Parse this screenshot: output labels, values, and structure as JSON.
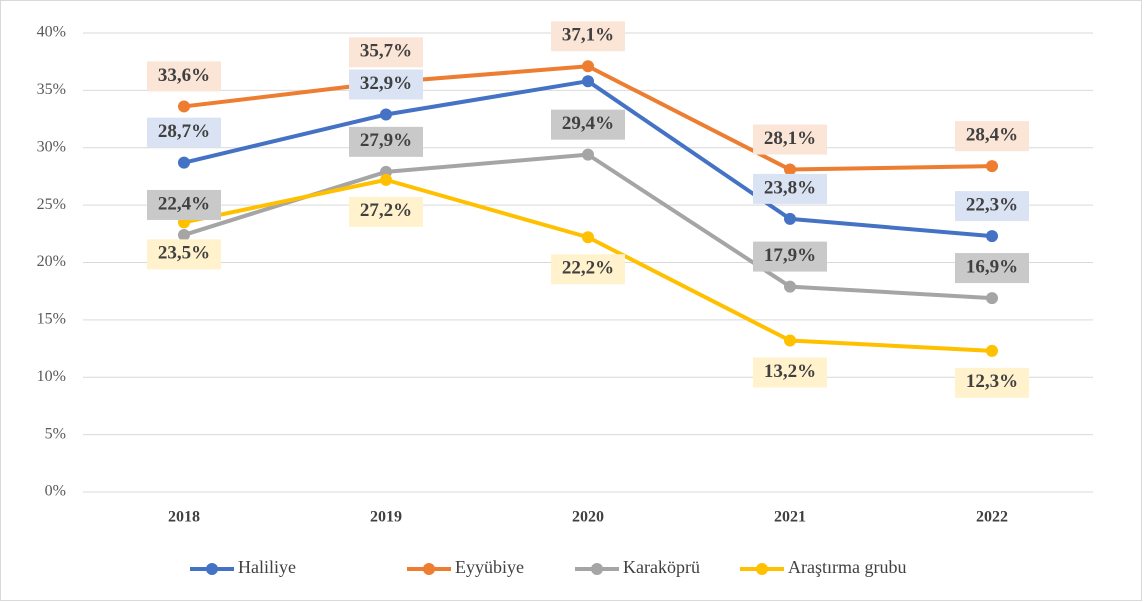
{
  "chart_data": {
    "type": "line",
    "categories": [
      "2018",
      "2019",
      "2020",
      "2021",
      "2022"
    ],
    "series": [
      {
        "name": "Haliliye",
        "color": "#4472c4",
        "values": [
          28.7,
          32.9,
          35.8,
          23.8,
          22.3
        ],
        "value_labels": [
          "28,7%",
          "32,9%",
          null,
          "23,8%",
          "22,3%"
        ]
      },
      {
        "name": "Eyyübiye",
        "color": "#ed7d31",
        "values": [
          33.6,
          35.7,
          37.1,
          28.1,
          28.4
        ],
        "value_labels": [
          "33,6%",
          "35,7%",
          "37,1%",
          "28,1%",
          "28,4%"
        ]
      },
      {
        "name": "Karaköprü",
        "color": "#a5a5a5",
        "values": [
          22.4,
          27.9,
          29.4,
          17.9,
          16.9
        ],
        "value_labels": [
          "22,4%",
          "27,9%",
          "29,4%",
          "17,9%",
          "16,9%"
        ]
      },
      {
        "name": "Araştırma grubu",
        "color": "#ffc000",
        "values": [
          23.5,
          27.2,
          22.2,
          13.2,
          12.3
        ],
        "value_labels": [
          "23,5%",
          "27,2%",
          "22,2%",
          "13,2%",
          "12,3%"
        ]
      }
    ],
    "ylim": [
      0,
      40
    ],
    "yticks": [
      {
        "value": 0,
        "label": "0%"
      },
      {
        "value": 5,
        "label": "5%"
      },
      {
        "value": 10,
        "label": "10%"
      },
      {
        "value": 15,
        "label": "15%"
      },
      {
        "value": 20,
        "label": "20%"
      },
      {
        "value": 25,
        "label": "25%"
      },
      {
        "value": 30,
        "label": "30%"
      },
      {
        "value": 35,
        "label": "35%"
      },
      {
        "value": 40,
        "label": "40%"
      }
    ],
    "grid": true,
    "legend": "bottom"
  }
}
